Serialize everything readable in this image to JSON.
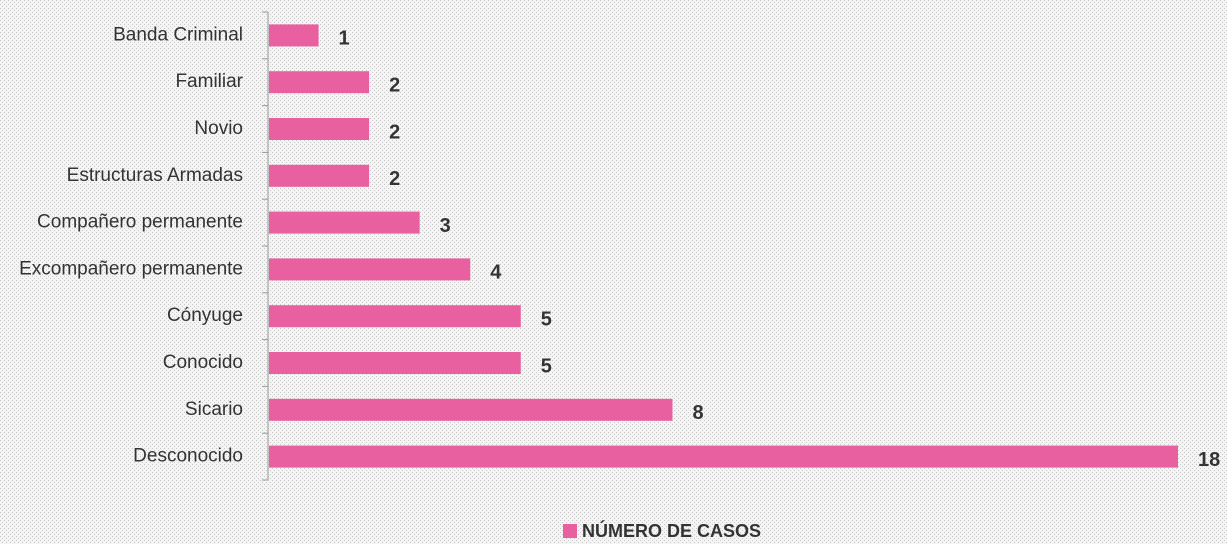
{
  "chart_data": {
    "type": "bar",
    "orientation": "horizontal",
    "categories": [
      "Banda Criminal",
      "Familiar",
      "Novio",
      "Estructuras Armadas",
      "Compañero permanente",
      "Excompañero permanente",
      "Cónyuge",
      "Conocido",
      "Sicario",
      "Desconocido"
    ],
    "series": [
      {
        "name": "NÚMERO DE CASOS",
        "color": "#e8609f",
        "values": [
          1,
          2,
          2,
          2,
          3,
          4,
          5,
          5,
          8,
          18
        ]
      }
    ],
    "legend": "bottom"
  }
}
